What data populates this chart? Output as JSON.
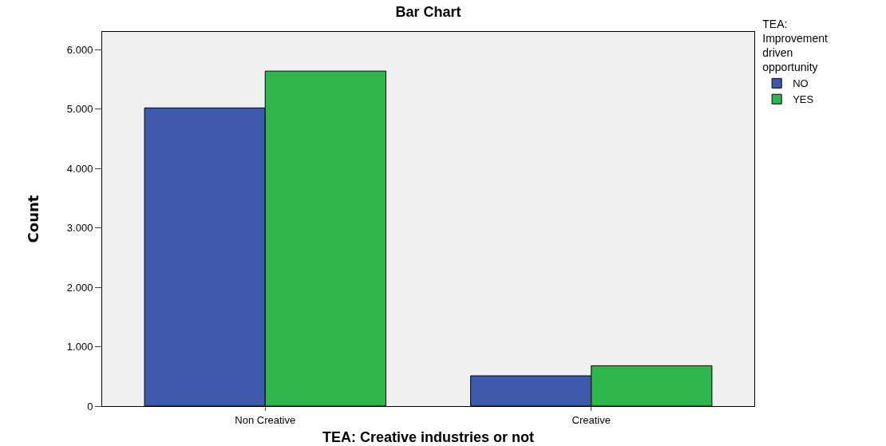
{
  "chart_data": {
    "type": "bar",
    "title": "Bar Chart",
    "xlabel": "TEA: Creative industries or not",
    "ylabel": "Count",
    "legend_title": "TEA: Improvement driven opportunity",
    "categories": [
      "Non Creative",
      "Creative"
    ],
    "series": [
      {
        "name": "NO",
        "color": "#3e58ac",
        "values": [
          5020,
          510
        ]
      },
      {
        "name": "YES",
        "color": "#2eb84b",
        "values": [
          5640,
          680
        ]
      }
    ],
    "ylim": [
      0,
      6300
    ],
    "yticks": [
      0,
      {
        "value": 1000,
        "label": "1.000"
      },
      {
        "value": 2000,
        "label": "2.000"
      },
      {
        "value": 3000,
        "label": "3.000"
      },
      {
        "value": 4000,
        "label": "4.000"
      },
      {
        "value": 5000,
        "label": "5.000"
      },
      {
        "value": 6000,
        "label": "6.000"
      }
    ],
    "grid": false,
    "legend": "top right"
  }
}
